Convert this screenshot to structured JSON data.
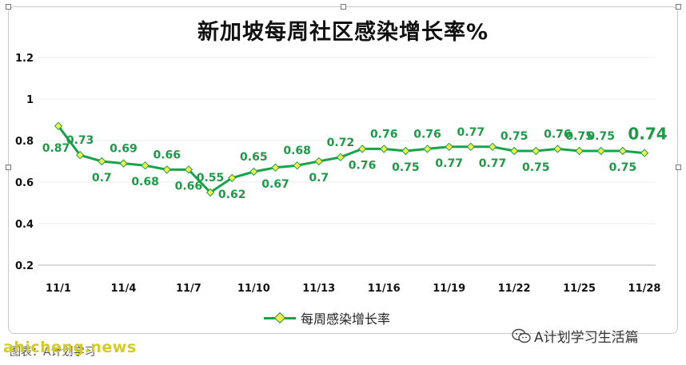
{
  "chart_data": {
    "type": "line",
    "title": "新加坡每周社区感染增长率%",
    "legend": "每周感染增长率",
    "legend_position": "bottom",
    "x": [
      "11/1",
      "11/2",
      "11/3",
      "11/4",
      "11/5",
      "11/6",
      "11/7",
      "11/8",
      "11/9",
      "11/10",
      "11/11",
      "11/12",
      "11/13",
      "11/14",
      "11/15",
      "11/16",
      "11/17",
      "11/18",
      "11/19",
      "11/20",
      "11/21",
      "11/22",
      "11/23",
      "11/24",
      "11/25",
      "11/26",
      "11/27",
      "11/28"
    ],
    "x_tick_labels": [
      "11/1",
      "11/4",
      "11/7",
      "11/10",
      "11/13",
      "11/16",
      "11/19",
      "11/22",
      "11/25",
      "11/28"
    ],
    "series": [
      {
        "name": "每周感染增长率",
        "color": "#16a34a",
        "marker_color": "#f3ec4b",
        "values": [
          0.87,
          0.73,
          0.7,
          0.69,
          0.68,
          0.66,
          0.66,
          0.55,
          0.62,
          0.65,
          0.67,
          0.68,
          0.7,
          0.72,
          0.76,
          0.76,
          0.75,
          0.76,
          0.77,
          0.77,
          0.77,
          0.75,
          0.75,
          0.76,
          0.75,
          0.75,
          0.75,
          0.74
        ],
        "labels": [
          "0.87",
          "0.73",
          "0.7",
          "0.69",
          "0.68",
          "0.66",
          "0.66",
          "0.55",
          "0.62",
          "0.65",
          "0.67",
          "0.68",
          "0.7",
          "0.72",
          "0.76",
          "0.76",
          "0.75",
          "0.76",
          "0.77",
          "0.77",
          "0.77",
          "0.75",
          "0.75",
          "0.76",
          "0.75",
          "0.75",
          "0.75",
          "0.74"
        ],
        "label_positions": [
          "below",
          "above",
          "below",
          "above",
          "below",
          "above",
          "below",
          "above",
          "below",
          "above",
          "below",
          "above",
          "below",
          "above",
          "below",
          "above",
          "below",
          "above",
          "below",
          "above",
          "below",
          "above",
          "below",
          "above",
          "above",
          "above",
          "below",
          "above"
        ]
      }
    ],
    "ylim": [
      0.2,
      1.2
    ],
    "yticks": [
      "0.2",
      "0.4",
      "0.6",
      "0.8",
      "1",
      "1.2"
    ],
    "grid": true
  },
  "wechat": {
    "label": "A计划学习生活篇"
  },
  "watermark": {
    "text": "ahicheng.news"
  },
  "source_note": {
    "text": "图表：A计划学习"
  },
  "colors": {
    "line": "#16a34a",
    "marker": "#f3ec4b",
    "label": "#1e9a47",
    "axis": "#111111"
  }
}
